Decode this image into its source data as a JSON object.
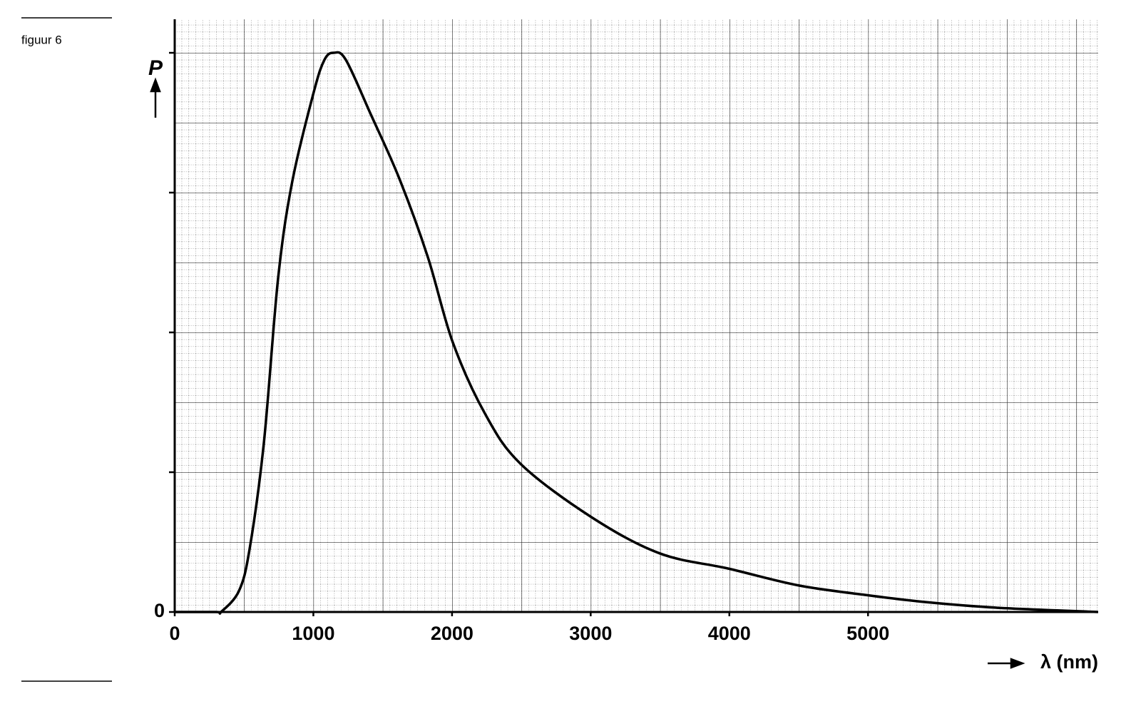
{
  "chart_data": {
    "type": "line",
    "caption": "figuur 6",
    "ylabel": "P",
    "xlabel": "λ (nm)",
    "x": [
      0,
      300,
      334,
      463,
      540,
      643,
      746,
      848,
      1003,
      1080,
      1147,
      1234,
      1414,
      1620,
      1825,
      2005,
      2237,
      2494,
      3003,
      3496,
      3995,
      4499,
      4997,
      5424,
      5938,
      6658
    ],
    "values": [
      0,
      0,
      0,
      0.15,
      0.45,
      1.21,
      2.39,
      3.08,
      3.72,
      3.95,
      4.0,
      3.95,
      3.56,
      3.1,
      2.54,
      1.93,
      1.42,
      1.06,
      0.68,
      0.42,
      0.31,
      0.19,
      0.12,
      0.07,
      0.03,
      0
    ],
    "color": "#000000",
    "xlim": [
      0,
      6660
    ],
    "ylim": [
      0,
      4.24
    ],
    "xticks": [
      0,
      1000,
      2000,
      3000,
      4000,
      5000
    ],
    "yticks": [
      0
    ],
    "y_unlabeled_ticks": [
      1,
      2,
      3,
      4
    ],
    "grid": true
  }
}
